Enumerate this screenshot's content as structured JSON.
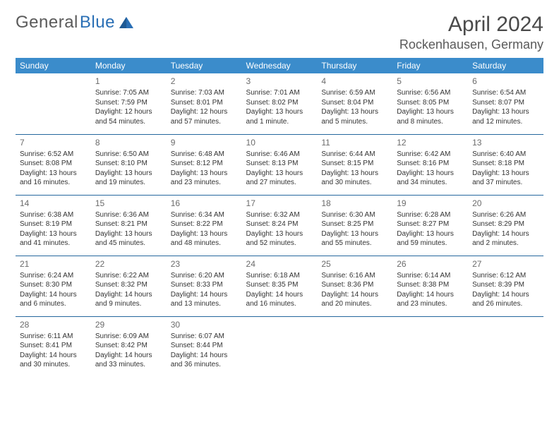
{
  "brand": {
    "name1": "General",
    "name2": "Blue"
  },
  "title": "April 2024",
  "location": "Rockenhausen, Germany",
  "theme": {
    "header_bg": "#3b8ccb",
    "header_text": "#ffffff",
    "row_border": "#25689e",
    "text_color": "#333333",
    "muted": "#6b6b6b",
    "brand_gray": "#5a5a5a",
    "brand_blue": "#2a6fb5",
    "page_bg": "#ffffff"
  },
  "weekdays": [
    "Sunday",
    "Monday",
    "Tuesday",
    "Wednesday",
    "Thursday",
    "Friday",
    "Saturday"
  ],
  "weeks": [
    [
      null,
      {
        "n": "1",
        "sr": "7:05 AM",
        "ss": "7:59 PM",
        "dl": "12 hours and 54 minutes."
      },
      {
        "n": "2",
        "sr": "7:03 AM",
        "ss": "8:01 PM",
        "dl": "12 hours and 57 minutes."
      },
      {
        "n": "3",
        "sr": "7:01 AM",
        "ss": "8:02 PM",
        "dl": "13 hours and 1 minute."
      },
      {
        "n": "4",
        "sr": "6:59 AM",
        "ss": "8:04 PM",
        "dl": "13 hours and 5 minutes."
      },
      {
        "n": "5",
        "sr": "6:56 AM",
        "ss": "8:05 PM",
        "dl": "13 hours and 8 minutes."
      },
      {
        "n": "6",
        "sr": "6:54 AM",
        "ss": "8:07 PM",
        "dl": "13 hours and 12 minutes."
      }
    ],
    [
      {
        "n": "7",
        "sr": "6:52 AM",
        "ss": "8:08 PM",
        "dl": "13 hours and 16 minutes."
      },
      {
        "n": "8",
        "sr": "6:50 AM",
        "ss": "8:10 PM",
        "dl": "13 hours and 19 minutes."
      },
      {
        "n": "9",
        "sr": "6:48 AM",
        "ss": "8:12 PM",
        "dl": "13 hours and 23 minutes."
      },
      {
        "n": "10",
        "sr": "6:46 AM",
        "ss": "8:13 PM",
        "dl": "13 hours and 27 minutes."
      },
      {
        "n": "11",
        "sr": "6:44 AM",
        "ss": "8:15 PM",
        "dl": "13 hours and 30 minutes."
      },
      {
        "n": "12",
        "sr": "6:42 AM",
        "ss": "8:16 PM",
        "dl": "13 hours and 34 minutes."
      },
      {
        "n": "13",
        "sr": "6:40 AM",
        "ss": "8:18 PM",
        "dl": "13 hours and 37 minutes."
      }
    ],
    [
      {
        "n": "14",
        "sr": "6:38 AM",
        "ss": "8:19 PM",
        "dl": "13 hours and 41 minutes."
      },
      {
        "n": "15",
        "sr": "6:36 AM",
        "ss": "8:21 PM",
        "dl": "13 hours and 45 minutes."
      },
      {
        "n": "16",
        "sr": "6:34 AM",
        "ss": "8:22 PM",
        "dl": "13 hours and 48 minutes."
      },
      {
        "n": "17",
        "sr": "6:32 AM",
        "ss": "8:24 PM",
        "dl": "13 hours and 52 minutes."
      },
      {
        "n": "18",
        "sr": "6:30 AM",
        "ss": "8:25 PM",
        "dl": "13 hours and 55 minutes."
      },
      {
        "n": "19",
        "sr": "6:28 AM",
        "ss": "8:27 PM",
        "dl": "13 hours and 59 minutes."
      },
      {
        "n": "20",
        "sr": "6:26 AM",
        "ss": "8:29 PM",
        "dl": "14 hours and 2 minutes."
      }
    ],
    [
      {
        "n": "21",
        "sr": "6:24 AM",
        "ss": "8:30 PM",
        "dl": "14 hours and 6 minutes."
      },
      {
        "n": "22",
        "sr": "6:22 AM",
        "ss": "8:32 PM",
        "dl": "14 hours and 9 minutes."
      },
      {
        "n": "23",
        "sr": "6:20 AM",
        "ss": "8:33 PM",
        "dl": "14 hours and 13 minutes."
      },
      {
        "n": "24",
        "sr": "6:18 AM",
        "ss": "8:35 PM",
        "dl": "14 hours and 16 minutes."
      },
      {
        "n": "25",
        "sr": "6:16 AM",
        "ss": "8:36 PM",
        "dl": "14 hours and 20 minutes."
      },
      {
        "n": "26",
        "sr": "6:14 AM",
        "ss": "8:38 PM",
        "dl": "14 hours and 23 minutes."
      },
      {
        "n": "27",
        "sr": "6:12 AM",
        "ss": "8:39 PM",
        "dl": "14 hours and 26 minutes."
      }
    ],
    [
      {
        "n": "28",
        "sr": "6:11 AM",
        "ss": "8:41 PM",
        "dl": "14 hours and 30 minutes."
      },
      {
        "n": "29",
        "sr": "6:09 AM",
        "ss": "8:42 PM",
        "dl": "14 hours and 33 minutes."
      },
      {
        "n": "30",
        "sr": "6:07 AM",
        "ss": "8:44 PM",
        "dl": "14 hours and 36 minutes."
      },
      null,
      null,
      null,
      null
    ]
  ],
  "labels": {
    "sunrise": "Sunrise:",
    "sunset": "Sunset:",
    "daylight": "Daylight:"
  }
}
